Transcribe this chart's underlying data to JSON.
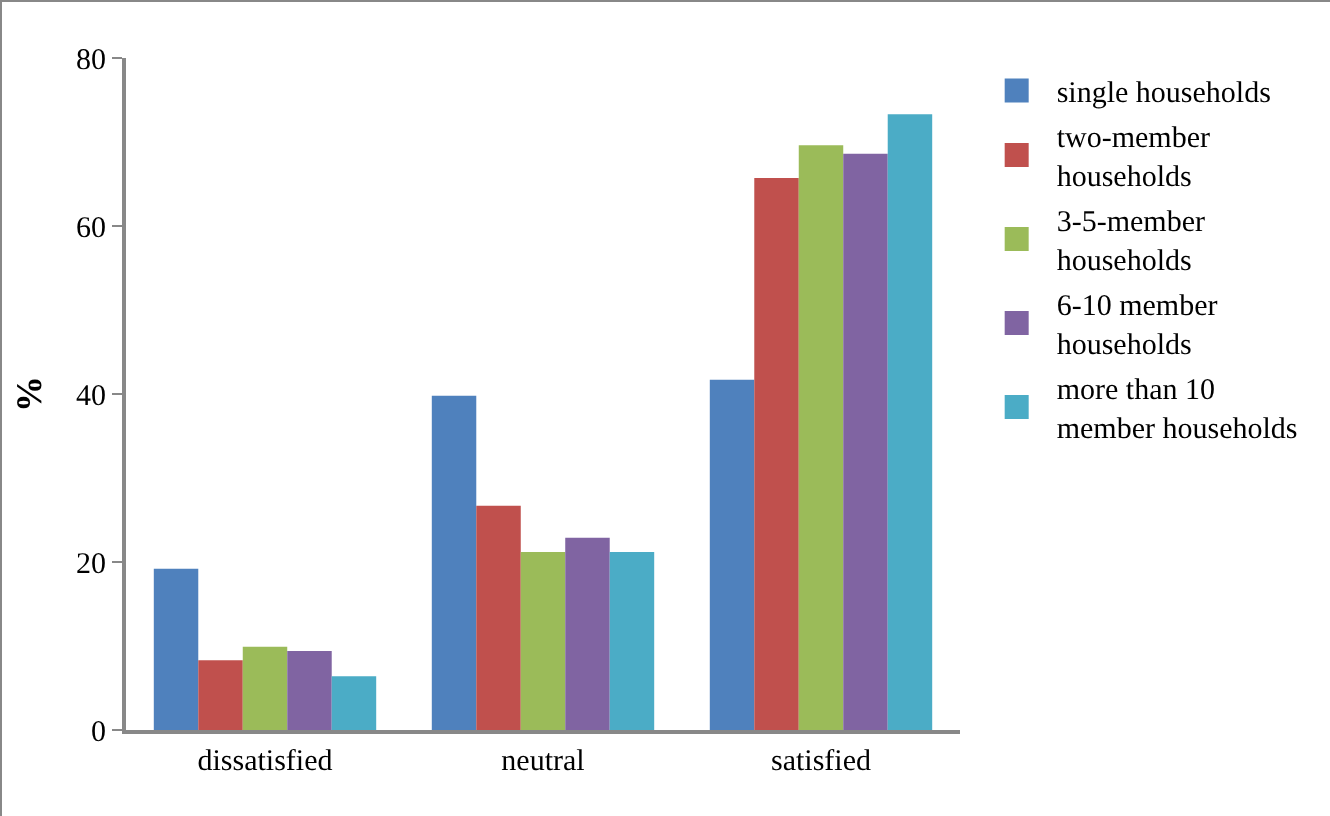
{
  "chart_data": {
    "type": "bar",
    "ylabel": "%",
    "categories": [
      "dissatisfied",
      "neutral",
      "satisfied"
    ],
    "series": [
      {
        "name": "single households",
        "color": "#4f81bd",
        "values": [
          19.2,
          39.8,
          41.7
        ]
      },
      {
        "name": "two-member households",
        "color": "#c0504d",
        "values": [
          8.3,
          26.7,
          65.7
        ]
      },
      {
        "name": "3-5-member households",
        "color": "#9bbb59",
        "values": [
          9.9,
          21.2,
          69.6
        ]
      },
      {
        "name": "6-10 member households",
        "color": "#8064a2",
        "values": [
          9.4,
          22.9,
          68.6
        ]
      },
      {
        "name": "more than 10 member households",
        "color": "#4bacc6",
        "values": [
          6.4,
          21.2,
          73.3
        ]
      }
    ],
    "ylim": [
      0,
      80
    ],
    "yticks": [
      0,
      20,
      40,
      60,
      80
    ],
    "grid": false,
    "legend": "right"
  }
}
